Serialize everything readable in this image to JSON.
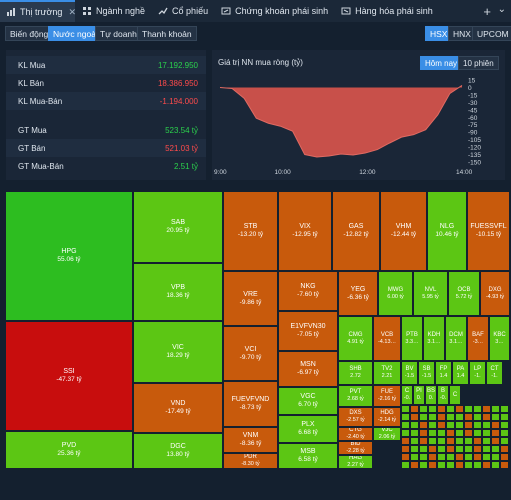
{
  "tabs": [
    {
      "label": "Thị trường",
      "icon": "chart-icon",
      "active": true
    },
    {
      "label": "Ngành nghề",
      "icon": "grid-icon"
    },
    {
      "label": "Cổ phiếu",
      "icon": "stock-icon"
    },
    {
      "label": "Chứng khoán phái sinh",
      "icon": "derivative-icon"
    },
    {
      "label": "Hàng hóa phái sinh",
      "icon": "commodity-icon"
    }
  ],
  "subtabs": [
    "Biến động",
    "Nước ngoài",
    "Tự doanh",
    "Thanh khoản"
  ],
  "exchanges": [
    "HSX",
    "HNX",
    "UPCOM"
  ],
  "stats": [
    {
      "label": "KL Mua",
      "value": "17.192.950",
      "color": "green"
    },
    {
      "label": "KL Bán",
      "value": "18.386.950",
      "color": "red"
    },
    {
      "label": "KL Mua-Bán",
      "value": "-1.194.000",
      "color": "red"
    },
    {
      "label": "GT Mua",
      "value": "523.54 tỷ",
      "color": "green"
    },
    {
      "label": "GT Bán",
      "value": "521.03 tỷ",
      "color": "red"
    },
    {
      "label": "GT Mua-Bán",
      "value": "2.51 tỷ",
      "color": "green"
    }
  ],
  "chart": {
    "title": "Giá trị NN mua ròng (tỷ)",
    "btn_today": "Hôm nay",
    "btn_10": "10 phiên",
    "x_ticks": [
      "9:00",
      "10:00",
      "12:00",
      "14:00"
    ],
    "y_ticks": [
      "15",
      "0",
      "-15",
      "-30",
      "-45",
      "-60",
      "-75",
      "-90",
      "-105",
      "-120",
      "-135",
      "-150"
    ]
  },
  "chart_data": {
    "type": "area",
    "title": "Giá trị NN mua ròng (tỷ)",
    "xlabel": "",
    "ylabel": "",
    "ylim": [
      -150,
      15
    ],
    "x_ticks": [
      "9:00",
      "10:00",
      "12:00",
      "14:00"
    ],
    "y_ticks": [
      15,
      0,
      -15,
      -30,
      -45,
      -60,
      -75,
      -90,
      -105,
      -120,
      -135,
      -150
    ],
    "x": [
      0,
      0.05,
      0.1,
      0.15,
      0.2,
      0.25,
      0.3,
      0.35,
      0.4,
      0.45,
      0.5,
      0.55,
      0.6,
      0.65,
      0.7,
      0.75,
      0.8,
      0.85,
      0.9,
      0.95,
      1.0
    ],
    "values": [
      0,
      -2,
      -22,
      -62,
      -72,
      -78,
      -88,
      -135,
      -140,
      -138,
      -134,
      -136,
      -132,
      -125,
      -112,
      -100,
      -95,
      -85,
      -55,
      -12,
      4
    ],
    "colors": {
      "area": "#c8504a",
      "line": "#e06a62"
    }
  },
  "treemap": [
    {
      "tk": "HPG",
      "vl": "55.06 tỷ",
      "c": "g1",
      "x": 0,
      "y": 0,
      "w": 128,
      "h": 130
    },
    {
      "tk": "SSI",
      "vl": "-47.37 tỷ",
      "c": "r1",
      "x": 0,
      "y": 130,
      "w": 128,
      "h": 110
    },
    {
      "tk": "PVD",
      "vl": "25.36 tỷ",
      "c": "g3",
      "x": 0,
      "y": 240,
      "w": 128,
      "h": 38
    },
    {
      "tk": "SAB",
      "vl": "20.95 tỷ",
      "c": "g3",
      "x": 128,
      "y": 0,
      "w": 90,
      "h": 72
    },
    {
      "tk": "VPB",
      "vl": "18.36 tỷ",
      "c": "g3",
      "x": 128,
      "y": 72,
      "w": 90,
      "h": 58
    },
    {
      "tk": "VIC",
      "vl": "18.29 tỷ",
      "c": "g3",
      "x": 128,
      "y": 130,
      "w": 90,
      "h": 62
    },
    {
      "tk": "VND",
      "vl": "-17.49 tỷ",
      "c": "o1",
      "x": 128,
      "y": 192,
      "w": 90,
      "h": 50
    },
    {
      "tk": "DGC",
      "vl": "13.80 tỷ",
      "c": "g3",
      "x": 128,
      "y": 242,
      "w": 90,
      "h": 36
    },
    {
      "tk": "STB",
      "vl": "-13.20 tỷ",
      "c": "o1",
      "x": 218,
      "y": 0,
      "w": 55,
      "h": 80
    },
    {
      "tk": "VIX",
      "vl": "-12.95 tỷ",
      "c": "o1",
      "x": 273,
      "y": 0,
      "w": 54,
      "h": 80
    },
    {
      "tk": "GAS",
      "vl": "-12.82 tỷ",
      "c": "o1",
      "x": 327,
      "y": 0,
      "w": 48,
      "h": 80
    },
    {
      "tk": "VHM",
      "vl": "-12.44 tỷ",
      "c": "o1",
      "x": 375,
      "y": 0,
      "w": 47,
      "h": 80
    },
    {
      "tk": "NLG",
      "vl": "10.46 tỷ",
      "c": "g3",
      "x": 422,
      "y": 0,
      "w": 40,
      "h": 80
    },
    {
      "tk": "FUESSVFL",
      "vl": "-10.15 tỷ",
      "c": "o1",
      "x": 462,
      "y": 0,
      "w": 43,
      "h": 80
    },
    {
      "tk": "VRE",
      "vl": "-9.86 tỷ",
      "c": "o1",
      "x": 218,
      "y": 80,
      "w": 55,
      "h": 55
    },
    {
      "tk": "VCI",
      "vl": "-9.70 tỷ",
      "c": "o1",
      "x": 218,
      "y": 135,
      "w": 55,
      "h": 55
    },
    {
      "tk": "FUEVFVND",
      "vl": "-8.73 tỷ",
      "c": "o1",
      "x": 218,
      "y": 190,
      "w": 55,
      "h": 46
    },
    {
      "tk": "VNM",
      "vl": "-8.36 tỷ",
      "c": "o1",
      "x": 218,
      "y": 236,
      "w": 55,
      "h": 26
    },
    {
      "tk": "PDR",
      "vl": "-8.30 tỷ",
      "c": "o1",
      "x": 218,
      "y": 262,
      "w": 55,
      "h": 16
    },
    {
      "tk": "NKG",
      "vl": "-7.60 tỷ",
      "c": "o1",
      "x": 273,
      "y": 80,
      "w": 60,
      "h": 40
    },
    {
      "tk": "E1VFVN30",
      "vl": "-7.05 tỷ",
      "c": "o1",
      "x": 273,
      "y": 120,
      "w": 60,
      "h": 40
    },
    {
      "tk": "MSN",
      "vl": "-6.97 tỷ",
      "c": "o1",
      "x": 273,
      "y": 160,
      "w": 60,
      "h": 36
    },
    {
      "tk": "VGC",
      "vl": "6.70 tỷ",
      "c": "g3",
      "x": 273,
      "y": 196,
      "w": 60,
      "h": 28
    },
    {
      "tk": "PLX",
      "vl": "6.68 tỷ",
      "c": "g3",
      "x": 273,
      "y": 224,
      "w": 60,
      "h": 28
    },
    {
      "tk": "MSB",
      "vl": "6.58 tỷ",
      "c": "g3",
      "x": 273,
      "y": 252,
      "w": 60,
      "h": 26
    },
    {
      "tk": "YEG",
      "vl": "-6.36 tỷ",
      "c": "o1",
      "x": 333,
      "y": 80,
      "w": 40,
      "h": 45
    },
    {
      "tk": "MWG",
      "vl": "6.00 tỷ",
      "c": "g3",
      "x": 373,
      "y": 80,
      "w": 35,
      "h": 45
    },
    {
      "tk": "NVL",
      "vl": "5.95 tỷ",
      "c": "g3",
      "x": 408,
      "y": 80,
      "w": 35,
      "h": 45
    },
    {
      "tk": "OCB",
      "vl": "5.72 tỷ",
      "c": "g3",
      "x": 443,
      "y": 80,
      "w": 32,
      "h": 45
    },
    {
      "tk": "DXG",
      "vl": "-4.93 tỷ",
      "c": "o1",
      "x": 475,
      "y": 80,
      "w": 30,
      "h": 45
    },
    {
      "tk": "CMG",
      "vl": "4.91 tỷ",
      "c": "g3",
      "x": 333,
      "y": 125,
      "w": 35,
      "h": 45
    },
    {
      "tk": "VCB",
      "vl": "-4.13…",
      "c": "o1",
      "x": 368,
      "y": 125,
      "w": 28,
      "h": 45
    },
    {
      "tk": "PTB",
      "vl": "3.3…",
      "c": "g3",
      "x": 396,
      "y": 125,
      "w": 22,
      "h": 45
    },
    {
      "tk": "KDH",
      "vl": "3.1…",
      "c": "g3",
      "x": 418,
      "y": 125,
      "w": 22,
      "h": 45
    },
    {
      "tk": "DCM",
      "vl": "3.1…",
      "c": "g3",
      "x": 440,
      "y": 125,
      "w": 22,
      "h": 45
    },
    {
      "tk": "BAF",
      "vl": "-3…",
      "c": "o1",
      "x": 462,
      "y": 125,
      "w": 22,
      "h": 45
    },
    {
      "tk": "KBC",
      "vl": "3…",
      "c": "g3",
      "x": 484,
      "y": 125,
      "w": 21,
      "h": 45
    },
    {
      "tk": "SHB",
      "vl": "2.72",
      "c": "g3",
      "x": 333,
      "y": 170,
      "w": 35,
      "h": 24
    },
    {
      "tk": "TV2",
      "vl": "2.21",
      "c": "g3",
      "x": 368,
      "y": 170,
      "w": 28,
      "h": 24
    },
    {
      "tk": "BV",
      "vl": "-1.5",
      "c": "g3",
      "x": 396,
      "y": 170,
      "w": 17,
      "h": 24
    },
    {
      "tk": "SB",
      "vl": "-1.5",
      "c": "g3",
      "x": 413,
      "y": 170,
      "w": 17,
      "h": 24
    },
    {
      "tk": "FP",
      "vl": "1.4",
      "c": "g3",
      "x": 430,
      "y": 170,
      "w": 17,
      "h": 24
    },
    {
      "tk": "PA",
      "vl": "1.4",
      "c": "g3",
      "x": 447,
      "y": 170,
      "w": 17,
      "h": 24
    },
    {
      "tk": "LP",
      "vl": "-1.",
      "c": "g3",
      "x": 464,
      "y": 170,
      "w": 17,
      "h": 24
    },
    {
      "tk": "CT",
      "vl": "-1.",
      "c": "g3",
      "x": 481,
      "y": 170,
      "w": 17,
      "h": 24
    },
    {
      "tk": "PVT",
      "vl": "2.68 tỷ",
      "c": "g3",
      "x": 333,
      "y": 194,
      "w": 35,
      "h": 22
    },
    {
      "tk": "FUE",
      "vl": "-2.16 tỷ",
      "c": "o1",
      "x": 368,
      "y": 194,
      "w": 28,
      "h": 22
    },
    {
      "tk": "DXS",
      "vl": "-2.57 tỷ",
      "c": "o1",
      "x": 333,
      "y": 216,
      "w": 35,
      "h": 20
    },
    {
      "tk": "HDG",
      "vl": "-2.14 tỷ",
      "c": "o1",
      "x": 368,
      "y": 216,
      "w": 28,
      "h": 20
    },
    {
      "tk": "CTG",
      "vl": "-2.40 tỷ",
      "c": "o1",
      "x": 333,
      "y": 236,
      "w": 35,
      "h": 14
    },
    {
      "tk": "VJC",
      "vl": "2.06 tỷ",
      "c": "g3",
      "x": 368,
      "y": 236,
      "w": 28,
      "h": 14
    },
    {
      "tk": "BID",
      "vl": "-2.28 tỷ",
      "c": "o1",
      "x": 333,
      "y": 250,
      "w": 35,
      "h": 14
    },
    {
      "tk": "HAG",
      "vl": "2.27 tỷ",
      "c": "g3",
      "x": 333,
      "y": 264,
      "w": 35,
      "h": 14
    },
    {
      "tk": "C",
      "vl": "-0.",
      "c": "g3",
      "x": 396,
      "y": 194,
      "w": 12,
      "h": 20
    },
    {
      "tk": "PI",
      "vl": "0.",
      "c": "g3",
      "x": 408,
      "y": 194,
      "w": 12,
      "h": 20
    },
    {
      "tk": "BS",
      "vl": "0.",
      "c": "g3",
      "x": 420,
      "y": 194,
      "w": 12,
      "h": 20
    },
    {
      "tk": "B",
      "vl": "-0.",
      "c": "g3",
      "x": 432,
      "y": 194,
      "w": 12,
      "h": 20
    },
    {
      "tk": "C",
      "vl": "",
      "c": "g3",
      "x": 444,
      "y": 194,
      "w": 12,
      "h": 20
    }
  ]
}
